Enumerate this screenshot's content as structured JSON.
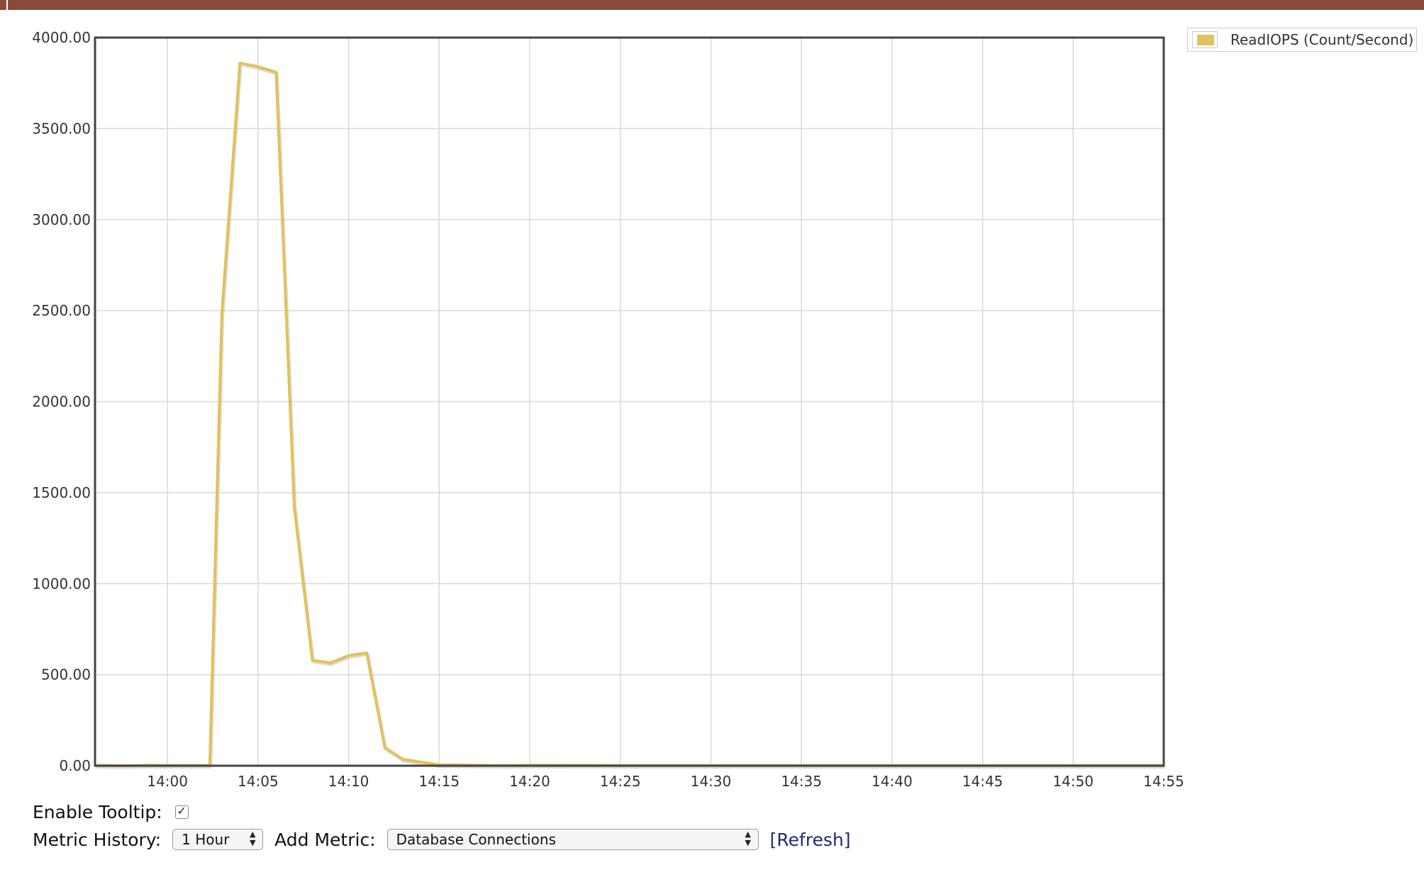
{
  "colors": {
    "topbar": "#8a4a3a",
    "series": "#e3c15c",
    "series_shadow": "#b0b0b0",
    "grid": "#d9d9d9",
    "frame": "#444444",
    "axis_text": "#333333",
    "link": "#1f2b7a"
  },
  "legend": {
    "label": "ReadIOPS (Count/Second)",
    "swatch_color": "#e3c15c"
  },
  "chart_data": {
    "type": "line",
    "title": "",
    "xlabel": "",
    "ylabel": "",
    "x_range_minutes": [
      "13:56",
      "14:55"
    ],
    "ylim": [
      0,
      4000
    ],
    "y_ticks": [
      "4000.00",
      "3500.00",
      "3000.00",
      "2500.00",
      "2000.00",
      "1500.00",
      "1000.00",
      "500.00",
      "0.00"
    ],
    "x_ticks": [
      "14:00",
      "14:05",
      "14:10",
      "14:15",
      "14:20",
      "14:25",
      "14:30",
      "14:35",
      "14:40",
      "14:45",
      "14:50",
      "14:55"
    ],
    "grid": true,
    "legend_position": "top-right",
    "series": [
      {
        "name": "ReadIOPS (Count/Second)",
        "x": [
          "13:56",
          "13:57",
          "13:58",
          "13:59",
          "14:00",
          "14:01",
          "14:02",
          "14:02:20",
          "14:03",
          "14:04",
          "14:05",
          "14:06",
          "14:07",
          "14:08",
          "14:09",
          "14:10",
          "14:11",
          "14:12",
          "14:13",
          "14:14",
          "14:15",
          "14:16",
          "14:17",
          "14:18",
          "14:19",
          "14:20",
          "14:25",
          "14:30",
          "14:35",
          "14:40",
          "14:45",
          "14:50",
          "14:55"
        ],
        "values": [
          2,
          1,
          1,
          3,
          2,
          2,
          2,
          2,
          2480,
          3860,
          3840,
          3810,
          1420,
          580,
          565,
          605,
          620,
          100,
          35,
          20,
          5,
          5,
          3,
          2,
          2,
          3,
          2,
          2,
          2,
          2,
          2,
          2,
          2
        ]
      }
    ]
  },
  "controls": {
    "tooltip_label": "Enable Tooltip:",
    "tooltip_checked": true,
    "history_label": "Metric History:",
    "history_value": "1 Hour",
    "add_metric_label": "Add Metric:",
    "add_metric_value": "Database Connections",
    "refresh_label": "[Refresh]"
  }
}
